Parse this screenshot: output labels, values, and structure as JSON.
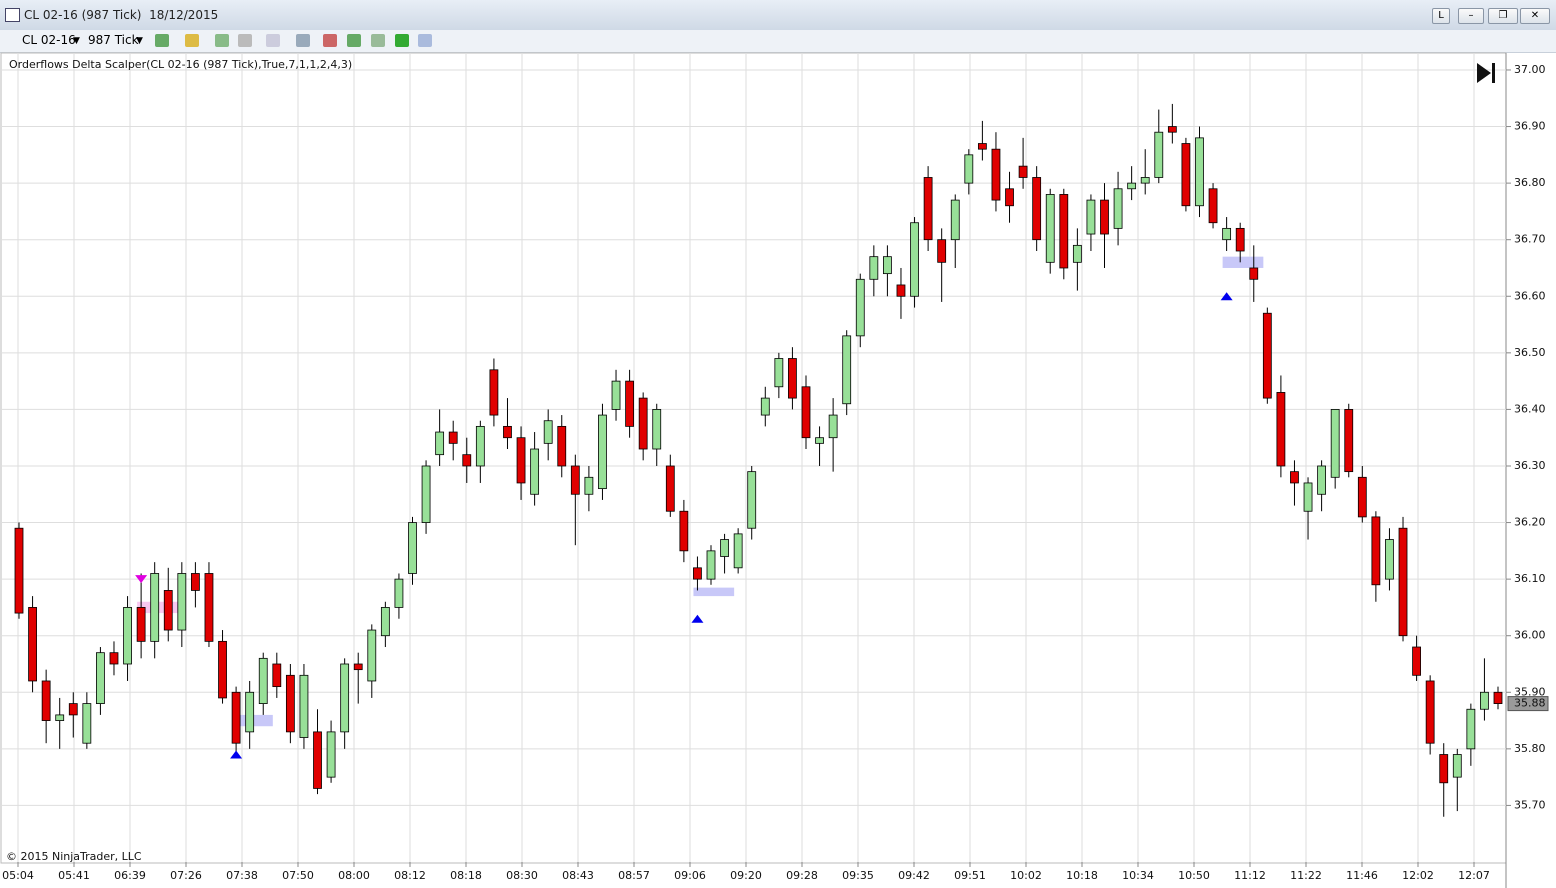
{
  "window": {
    "title": "CL 02-16 (987 Tick)  18/12/2015",
    "instrument": "CL 02-16",
    "interval": "987 Tick"
  },
  "chart_data": {
    "type": "candlestick",
    "indicator_label": "Orderflows Delta Scalper(CL 02-16 (987 Tick),True,7,1,1,2,4,3)",
    "copyright": "© 2015 NinjaTrader, LLC",
    "up_color": "#98e098",
    "down_color": "#e00000",
    "xtick_labels": [
      "05:04",
      "05:41",
      "06:39",
      "07:26",
      "07:38",
      "07:50",
      "08:00",
      "08:12",
      "08:18",
      "08:30",
      "08:43",
      "08:57",
      "09:06",
      "09:20",
      "09:28",
      "09:35",
      "09:42",
      "09:51",
      "10:02",
      "10:18",
      "10:34",
      "10:50",
      "11:12",
      "11:22",
      "11:46",
      "12:02",
      "12:07"
    ],
    "ylim": [
      35.6,
      37.03
    ],
    "yticks": [
      {
        "value": 35.7,
        "label": "35.70"
      },
      {
        "value": 35.8,
        "label": "35.80"
      },
      {
        "value": 35.9,
        "label": "35.90"
      },
      {
        "value": 36,
        "label": "36.00"
      },
      {
        "value": 36.1,
        "label": "36.10"
      },
      {
        "value": 36.2,
        "label": "36.20"
      },
      {
        "value": 36.3,
        "label": "36.30"
      },
      {
        "value": 36.4,
        "label": "36.40"
      },
      {
        "value": 36.5,
        "label": "36.50"
      },
      {
        "value": 36.6,
        "label": "36.60"
      },
      {
        "value": 36.7,
        "label": "36.70"
      },
      {
        "value": 36.8,
        "label": "36.80"
      },
      {
        "value": 36.9,
        "label": "36.90"
      },
      {
        "value": 37,
        "label": "37.00"
      }
    ],
    "grid": true,
    "last_price": 35.88,
    "ohlc": [
      [
        36.19,
        36.2,
        36.03,
        36.04
      ],
      [
        36.05,
        36.07,
        35.9,
        35.92
      ],
      [
        35.92,
        35.94,
        35.81,
        35.85
      ],
      [
        35.85,
        35.89,
        35.8,
        35.86
      ],
      [
        35.88,
        35.9,
        35.82,
        35.86
      ],
      [
        35.81,
        35.9,
        35.8,
        35.88
      ],
      [
        35.88,
        35.98,
        35.86,
        35.97
      ],
      [
        35.97,
        35.99,
        35.93,
        35.95
      ],
      [
        35.95,
        36.07,
        35.92,
        36.05
      ],
      [
        36.05,
        36.11,
        35.96,
        35.99
      ],
      [
        35.99,
        36.13,
        35.96,
        36.11
      ],
      [
        36.08,
        36.12,
        35.99,
        36.01
      ],
      [
        36.01,
        36.13,
        35.98,
        36.11
      ],
      [
        36.11,
        36.13,
        36.05,
        36.08
      ],
      [
        36.11,
        36.13,
        35.98,
        35.99
      ],
      [
        35.99,
        36.01,
        35.88,
        35.89
      ],
      [
        35.9,
        35.91,
        35.79,
        35.81
      ],
      [
        35.83,
        35.92,
        35.8,
        35.9
      ],
      [
        35.88,
        35.97,
        35.86,
        35.96
      ],
      [
        35.95,
        35.97,
        35.89,
        35.91
      ],
      [
        35.93,
        35.95,
        35.81,
        35.83
      ],
      [
        35.82,
        35.95,
        35.8,
        35.93
      ],
      [
        35.83,
        35.87,
        35.72,
        35.73
      ],
      [
        35.75,
        35.85,
        35.74,
        35.83
      ],
      [
        35.83,
        35.96,
        35.8,
        35.95
      ],
      [
        35.95,
        35.97,
        35.88,
        35.94
      ],
      [
        35.92,
        36.02,
        35.89,
        36.01
      ],
      [
        36.0,
        36.06,
        35.98,
        36.05
      ],
      [
        36.05,
        36.11,
        36.03,
        36.1
      ],
      [
        36.11,
        36.21,
        36.09,
        36.2
      ],
      [
        36.2,
        36.31,
        36.18,
        36.3
      ],
      [
        36.32,
        36.4,
        36.3,
        36.36
      ],
      [
        36.36,
        36.38,
        36.31,
        36.34
      ],
      [
        36.32,
        36.35,
        36.27,
        36.3
      ],
      [
        36.3,
        36.38,
        36.27,
        36.37
      ],
      [
        36.47,
        36.49,
        36.37,
        36.39
      ],
      [
        36.37,
        36.42,
        36.33,
        36.35
      ],
      [
        36.35,
        36.37,
        36.24,
        36.27
      ],
      [
        36.25,
        36.36,
        36.23,
        36.33
      ],
      [
        36.34,
        36.4,
        36.31,
        36.38
      ],
      [
        36.37,
        36.39,
        36.28,
        36.3
      ],
      [
        36.3,
        36.32,
        36.16,
        36.25
      ],
      [
        36.25,
        36.3,
        36.22,
        36.28
      ],
      [
        36.26,
        36.41,
        36.24,
        36.39
      ],
      [
        36.4,
        36.47,
        36.38,
        36.45
      ],
      [
        36.45,
        36.47,
        36.35,
        36.37
      ],
      [
        36.42,
        36.43,
        36.31,
        36.33
      ],
      [
        36.33,
        36.41,
        36.3,
        36.4
      ],
      [
        36.3,
        36.32,
        36.21,
        36.22
      ],
      [
        36.22,
        36.24,
        36.13,
        36.15
      ],
      [
        36.12,
        36.14,
        36.08,
        36.1
      ],
      [
        36.1,
        36.16,
        36.09,
        36.15
      ],
      [
        36.14,
        36.18,
        36.11,
        36.17
      ],
      [
        36.12,
        36.19,
        36.11,
        36.18
      ],
      [
        36.19,
        36.3,
        36.17,
        36.29
      ],
      [
        36.39,
        36.44,
        36.37,
        36.42
      ],
      [
        36.44,
        36.5,
        36.42,
        36.49
      ],
      [
        36.49,
        36.51,
        36.4,
        36.42
      ],
      [
        36.44,
        36.46,
        36.33,
        36.35
      ],
      [
        36.34,
        36.37,
        36.3,
        36.35
      ],
      [
        36.35,
        36.42,
        36.29,
        36.39
      ],
      [
        36.41,
        36.54,
        36.39,
        36.53
      ],
      [
        36.53,
        36.64,
        36.51,
        36.63
      ],
      [
        36.63,
        36.69,
        36.6,
        36.67
      ],
      [
        36.64,
        36.69,
        36.6,
        36.67
      ],
      [
        36.62,
        36.65,
        36.56,
        36.6
      ],
      [
        36.6,
        36.74,
        36.58,
        36.73
      ],
      [
        36.81,
        36.83,
        36.68,
        36.7
      ],
      [
        36.7,
        36.72,
        36.59,
        36.66
      ],
      [
        36.7,
        36.78,
        36.65,
        36.77
      ],
      [
        36.8,
        36.86,
        36.78,
        36.85
      ],
      [
        36.87,
        36.91,
        36.84,
        36.86
      ],
      [
        36.86,
        36.89,
        36.75,
        36.77
      ],
      [
        36.79,
        36.82,
        36.73,
        36.76
      ],
      [
        36.83,
        36.88,
        36.79,
        36.81
      ],
      [
        36.81,
        36.83,
        36.68,
        36.7
      ],
      [
        36.66,
        36.79,
        36.64,
        36.78
      ],
      [
        36.78,
        36.79,
        36.63,
        36.65
      ],
      [
        36.66,
        36.72,
        36.61,
        36.69
      ],
      [
        36.71,
        36.78,
        36.68,
        36.77
      ],
      [
        36.77,
        36.8,
        36.65,
        36.71
      ],
      [
        36.72,
        36.82,
        36.69,
        36.79
      ],
      [
        36.79,
        36.83,
        36.77,
        36.8
      ],
      [
        36.8,
        36.86,
        36.78,
        36.81
      ],
      [
        36.81,
        36.93,
        36.8,
        36.89
      ],
      [
        36.9,
        36.94,
        36.87,
        36.89
      ],
      [
        36.87,
        36.88,
        36.75,
        36.76
      ],
      [
        36.76,
        36.9,
        36.74,
        36.88
      ],
      [
        36.79,
        36.8,
        36.72,
        36.73
      ],
      [
        36.7,
        36.74,
        36.68,
        36.72
      ],
      [
        36.72,
        36.73,
        36.66,
        36.68
      ],
      [
        36.65,
        36.69,
        36.59,
        36.63
      ],
      [
        36.57,
        36.58,
        36.41,
        36.42
      ],
      [
        36.43,
        36.46,
        36.28,
        36.3
      ],
      [
        36.29,
        36.31,
        36.23,
        36.27
      ],
      [
        36.22,
        36.28,
        36.17,
        36.27
      ],
      [
        36.25,
        36.31,
        36.22,
        36.3
      ],
      [
        36.28,
        36.4,
        36.26,
        36.4
      ],
      [
        36.4,
        36.41,
        36.28,
        36.29
      ],
      [
        36.28,
        36.3,
        36.2,
        36.21
      ],
      [
        36.21,
        36.22,
        36.06,
        36.09
      ],
      [
        36.1,
        36.19,
        36.08,
        36.17
      ],
      [
        36.19,
        36.21,
        35.99,
        36.0
      ],
      [
        35.98,
        36.0,
        35.92,
        35.93
      ],
      [
        35.92,
        35.93,
        35.79,
        35.81
      ],
      [
        35.79,
        35.81,
        35.68,
        35.74
      ],
      [
        35.75,
        35.8,
        35.69,
        35.79
      ],
      [
        35.8,
        35.88,
        35.77,
        35.87
      ],
      [
        35.87,
        35.96,
        35.85,
        35.9
      ],
      [
        35.9,
        35.91,
        35.87,
        35.88
      ]
    ],
    "signals": [
      {
        "direction": "up",
        "candle": 16,
        "price": 35.79,
        "zone": [
          35.86,
          35.84
        ],
        "color": "#0000ee",
        "zone_color": "#c8c8f8"
      },
      {
        "direction": "up",
        "candle": 50,
        "price": 36.03,
        "zone": [
          36.085,
          36.07
        ],
        "color": "#0000ee",
        "zone_color": "#c8c8f8"
      },
      {
        "direction": "up",
        "candle": 89,
        "price": 36.6,
        "zone": [
          36.67,
          36.65
        ],
        "color": "#0000ee",
        "zone_color": "#c8c8f8"
      },
      {
        "direction": "down",
        "candle": 9,
        "price": 36.1,
        "zone": [
          36.06,
          36.04
        ],
        "color": "#e000e0",
        "zone_color": "#f8c8f0"
      }
    ]
  }
}
